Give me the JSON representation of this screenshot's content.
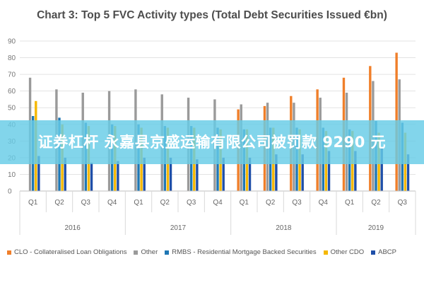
{
  "banner": {
    "text": "证券杠杆 永嘉县京盛运输有限公司被罚款 9290 元",
    "color": "#66cce6"
  },
  "chart_data": {
    "type": "bar",
    "title": "Chart 3: Top 5 FVC Activity types (Total Debt Securities Issued €bn)",
    "ylim": [
      0,
      90
    ],
    "yticks": [
      0,
      10,
      20,
      30,
      40,
      50,
      60,
      70,
      80,
      90
    ],
    "grid": true,
    "legend_position": "bottom",
    "categories": [
      "Q1",
      "Q2",
      "Q3",
      "Q4",
      "Q1",
      "Q2",
      "Q3",
      "Q4",
      "Q1",
      "Q2",
      "Q3",
      "Q4",
      "Q1",
      "Q2",
      "Q3"
    ],
    "groups": [
      {
        "label": "2016",
        "count": 4
      },
      {
        "label": "2017",
        "count": 4
      },
      {
        "label": "2018",
        "count": 4
      },
      {
        "label": "2019",
        "count": 3
      }
    ],
    "series": [
      {
        "name": "CLO - Collateralised Loan Obligations",
        "color": "#f07f2a",
        "values": [
          null,
          null,
          null,
          null,
          null,
          null,
          null,
          null,
          49,
          51,
          57,
          61,
          68,
          75,
          83
        ]
      },
      {
        "name": "Other",
        "color": "#9a9a9a",
        "values": [
          68,
          61,
          59,
          60,
          61,
          58,
          56,
          55,
          52,
          53,
          53,
          56,
          59,
          66,
          67
        ]
      },
      {
        "name": "RMBS - Residential Mortgage Backed Securities",
        "color": "#1f77b4",
        "values": [
          45,
          44,
          41,
          40,
          40,
          39,
          39,
          38,
          37,
          38,
          38,
          38,
          37,
          42,
          41
        ]
      },
      {
        "name": "Other CDO",
        "color": "#f5b800",
        "values": [
          54,
          40,
          39,
          39,
          38,
          38,
          38,
          37,
          37,
          38,
          37,
          36,
          36,
          35,
          35
        ]
      },
      {
        "name": "ABCP",
        "color": "#1f4fa8",
        "values": [
          21,
          20,
          17,
          18,
          20,
          20,
          19,
          20,
          20,
          22,
          22,
          24,
          24,
          26,
          22
        ]
      }
    ]
  }
}
